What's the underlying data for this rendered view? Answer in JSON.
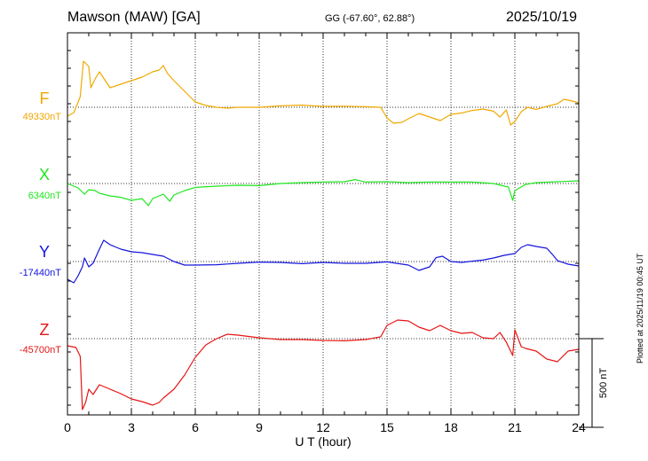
{
  "header": {
    "station": "Mawson (MAW)  [GA]",
    "coords": "GG (-67.60°,  62.88°)",
    "date": "2025/10/19"
  },
  "plotted_note": "Plotted at 2025/11/19 00:45 UT",
  "chart_data": {
    "type": "line",
    "xlabel": "U T (hour)",
    "xlim": [
      0,
      24
    ],
    "xticks": [
      "0",
      "3",
      "6",
      "9",
      "12",
      "15",
      "18",
      "21",
      "24"
    ],
    "scale_bar_label": "500 nT",
    "scale_bar_nT": 500,
    "grid": true,
    "series": [
      {
        "name": "F",
        "baseline_label": "49330nT",
        "baseline": 49330,
        "color": "#f0a800",
        "points": [
          [
            0,
            49280
          ],
          [
            0.3,
            49300
          ],
          [
            0.6,
            49390
          ],
          [
            0.75,
            49590
          ],
          [
            1.0,
            49560
          ],
          [
            1.1,
            49440
          ],
          [
            1.3,
            49490
          ],
          [
            1.5,
            49530
          ],
          [
            2.0,
            49440
          ],
          [
            2.5,
            49460
          ],
          [
            3.0,
            49480
          ],
          [
            3.5,
            49500
          ],
          [
            4.0,
            49530
          ],
          [
            4.3,
            49540
          ],
          [
            4.5,
            49565
          ],
          [
            4.7,
            49520
          ],
          [
            5.0,
            49480
          ],
          [
            5.5,
            49420
          ],
          [
            6.0,
            49360
          ],
          [
            6.5,
            49340
          ],
          [
            7.0,
            49330
          ],
          [
            7.5,
            49325
          ],
          [
            8.0,
            49330
          ],
          [
            9.0,
            49330
          ],
          [
            10.0,
            49338
          ],
          [
            11.0,
            49342
          ],
          [
            12.0,
            49335
          ],
          [
            13.0,
            49336
          ],
          [
            14.0,
            49333
          ],
          [
            14.7,
            49330
          ],
          [
            15.0,
            49270
          ],
          [
            15.3,
            49240
          ],
          [
            15.7,
            49245
          ],
          [
            16.0,
            49265
          ],
          [
            16.5,
            49295
          ],
          [
            17.0,
            49275
          ],
          [
            17.5,
            49255
          ],
          [
            18.0,
            49290
          ],
          [
            18.5,
            49298
          ],
          [
            19.0,
            49312
          ],
          [
            19.5,
            49320
          ],
          [
            20.0,
            49308
          ],
          [
            20.3,
            49275
          ],
          [
            20.6,
            49315
          ],
          [
            20.8,
            49230
          ],
          [
            21.0,
            49250
          ],
          [
            21.3,
            49305
          ],
          [
            21.6,
            49330
          ],
          [
            22.0,
            49318
          ],
          [
            22.5,
            49335
          ],
          [
            23.0,
            49350
          ],
          [
            23.3,
            49375
          ],
          [
            23.7,
            49365
          ],
          [
            24.0,
            49355
          ]
        ]
      },
      {
        "name": "X",
        "baseline_label": "6340nT",
        "baseline": 6340,
        "color": "#1ee61e",
        "points": [
          [
            0,
            6340
          ],
          [
            0.5,
            6315
          ],
          [
            0.8,
            6280
          ],
          [
            1.0,
            6305
          ],
          [
            1.3,
            6300
          ],
          [
            1.5,
            6285
          ],
          [
            2.0,
            6270
          ],
          [
            2.5,
            6262
          ],
          [
            3.0,
            6245
          ],
          [
            3.5,
            6255
          ],
          [
            3.8,
            6215
          ],
          [
            4.0,
            6255
          ],
          [
            4.5,
            6280
          ],
          [
            4.8,
            6240
          ],
          [
            5.0,
            6275
          ],
          [
            5.5,
            6300
          ],
          [
            6.0,
            6318
          ],
          [
            7.0,
            6325
          ],
          [
            8.0,
            6330
          ],
          [
            9.0,
            6328
          ],
          [
            10.0,
            6340
          ],
          [
            11.0,
            6345
          ],
          [
            12.0,
            6348
          ],
          [
            13.0,
            6350
          ],
          [
            13.5,
            6362
          ],
          [
            14.0,
            6348
          ],
          [
            15.0,
            6350
          ],
          [
            16.0,
            6345
          ],
          [
            17.0,
            6348
          ],
          [
            18.0,
            6348
          ],
          [
            19.0,
            6348
          ],
          [
            20.0,
            6340
          ],
          [
            20.7,
            6320
          ],
          [
            20.9,
            6245
          ],
          [
            21.0,
            6300
          ],
          [
            21.5,
            6335
          ],
          [
            22.0,
            6345
          ],
          [
            23.0,
            6350
          ],
          [
            24.0,
            6355
          ]
        ]
      },
      {
        "name": "Y",
        "baseline_label": "-17440nT",
        "baseline": -17440,
        "color": "#1414dc",
        "points": [
          [
            0,
            -17540
          ],
          [
            0.3,
            -17560
          ],
          [
            0.5,
            -17520
          ],
          [
            0.7,
            -17470
          ],
          [
            0.8,
            -17420
          ],
          [
            1.0,
            -17470
          ],
          [
            1.2,
            -17450
          ],
          [
            1.5,
            -17370
          ],
          [
            1.7,
            -17320
          ],
          [
            2.0,
            -17345
          ],
          [
            2.5,
            -17370
          ],
          [
            3.0,
            -17385
          ],
          [
            3.5,
            -17390
          ],
          [
            4.0,
            -17400
          ],
          [
            4.5,
            -17410
          ],
          [
            5.0,
            -17440
          ],
          [
            5.5,
            -17460
          ],
          [
            6.0,
            -17460
          ],
          [
            7.0,
            -17458
          ],
          [
            8.0,
            -17450
          ],
          [
            9.0,
            -17443
          ],
          [
            10.0,
            -17445
          ],
          [
            11.0,
            -17452
          ],
          [
            12.0,
            -17445
          ],
          [
            13.0,
            -17450
          ],
          [
            14.0,
            -17450
          ],
          [
            15.0,
            -17442
          ],
          [
            16.0,
            -17460
          ],
          [
            16.5,
            -17490
          ],
          [
            17.0,
            -17470
          ],
          [
            17.3,
            -17418
          ],
          [
            17.6,
            -17410
          ],
          [
            18.0,
            -17440
          ],
          [
            18.5,
            -17445
          ],
          [
            19.0,
            -17438
          ],
          [
            19.5,
            -17432
          ],
          [
            20.0,
            -17420
          ],
          [
            20.5,
            -17405
          ],
          [
            21.0,
            -17395
          ],
          [
            21.3,
            -17360
          ],
          [
            21.6,
            -17345
          ],
          [
            22.0,
            -17355
          ],
          [
            22.5,
            -17365
          ],
          [
            22.8,
            -17405
          ],
          [
            23.0,
            -17435
          ],
          [
            23.5,
            -17455
          ],
          [
            24.0,
            -17465
          ]
        ]
      },
      {
        "name": "Z",
        "baseline_label": "-45700nT",
        "baseline": -45700,
        "color": "#e61414",
        "points": [
          [
            0,
            -45740
          ],
          [
            0.4,
            -45750
          ],
          [
            0.6,
            -45800
          ],
          [
            0.7,
            -46100
          ],
          [
            0.85,
            -46060
          ],
          [
            1.0,
            -45985
          ],
          [
            1.2,
            -46015
          ],
          [
            1.5,
            -45960
          ],
          [
            2.0,
            -45985
          ],
          [
            2.5,
            -46010
          ],
          [
            3.0,
            -46040
          ],
          [
            3.5,
            -46055
          ],
          [
            4.0,
            -46075
          ],
          [
            4.3,
            -46060
          ],
          [
            4.5,
            -46035
          ],
          [
            5.0,
            -45985
          ],
          [
            5.5,
            -45905
          ],
          [
            6.0,
            -45805
          ],
          [
            6.5,
            -45735
          ],
          [
            7.0,
            -45700
          ],
          [
            7.5,
            -45675
          ],
          [
            8.0,
            -45680
          ],
          [
            9.0,
            -45695
          ],
          [
            10.0,
            -45705
          ],
          [
            11.0,
            -45705
          ],
          [
            12.0,
            -45710
          ],
          [
            13.0,
            -45712
          ],
          [
            14.0,
            -45705
          ],
          [
            14.7,
            -45690
          ],
          [
            15.0,
            -45625
          ],
          [
            15.5,
            -45595
          ],
          [
            16.0,
            -45600
          ],
          [
            16.5,
            -45635
          ],
          [
            17.0,
            -45655
          ],
          [
            17.5,
            -45625
          ],
          [
            18.0,
            -45655
          ],
          [
            18.5,
            -45670
          ],
          [
            19.0,
            -45665
          ],
          [
            19.5,
            -45695
          ],
          [
            20.0,
            -45700
          ],
          [
            20.3,
            -45665
          ],
          [
            20.6,
            -45720
          ],
          [
            20.9,
            -45795
          ],
          [
            21.0,
            -45650
          ],
          [
            21.3,
            -45745
          ],
          [
            21.5,
            -45755
          ],
          [
            22.0,
            -45770
          ],
          [
            22.5,
            -45815
          ],
          [
            23.0,
            -45830
          ],
          [
            23.5,
            -45770
          ],
          [
            24.0,
            -45760
          ]
        ]
      }
    ]
  }
}
